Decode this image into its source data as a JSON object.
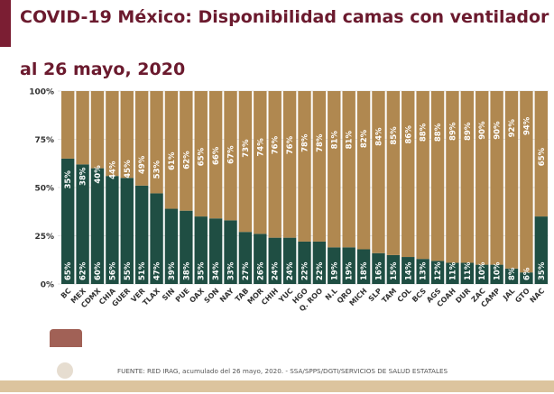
{
  "title_line1": "COVID-19 México: Disponibilidad camas con ventilador",
  "title_line2": "al 26 mayo, 2020",
  "source": "FUENTE: RED IRAG, acumulado del 26 mayo, 2020. -  SSA/SPPS/DGTI/SERVICIOS DE SALUD ESTATALES",
  "colors": {
    "occupied": "#1f4e43",
    "available": "#b08850",
    "title": "#6b1a2e"
  },
  "chart_data": {
    "type": "bar",
    "stacked": true,
    "categories": [
      "BC",
      "MEX",
      "CDMX",
      "CHIA",
      "GUER",
      "VER",
      "TLAX",
      "SIN",
      "PUE",
      "OAX",
      "SON",
      "NAY",
      "TAB",
      "MOR",
      "CHIH",
      "YUC",
      "HGO",
      "Q. ROO",
      "N.L",
      "QRO",
      "MICH",
      "SLP",
      "TAM",
      "COL",
      "BCS",
      "AGS",
      "COAH",
      "DUR",
      "ZAC",
      "CAMP",
      "JAL",
      "GTO",
      "NAC"
    ],
    "series": [
      {
        "values": [
          65,
          62,
          60,
          56,
          55,
          51,
          47,
          39,
          38,
          35,
          34,
          33,
          27,
          26,
          24,
          24,
          22,
          22,
          19,
          19,
          18,
          16,
          15,
          14,
          13,
          12,
          11,
          11,
          10,
          10,
          8,
          6,
          35
        ]
      },
      {
        "values": [
          35,
          38,
          40,
          44,
          45,
          49,
          53,
          61,
          62,
          65,
          66,
          67,
          73,
          74,
          76,
          76,
          78,
          78,
          81,
          81,
          82,
          84,
          85,
          86,
          88,
          88,
          89,
          89,
          90,
          90,
          92,
          94,
          65
        ]
      }
    ],
    "yticks": [
      "0%",
      "25%",
      "50%",
      "75%",
      "100%"
    ],
    "ylim": [
      0,
      100
    ],
    "grid": true
  }
}
